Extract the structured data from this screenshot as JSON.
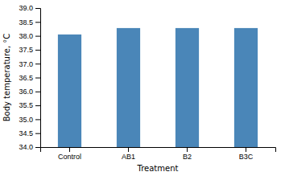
{
  "chart_data": {
    "type": "bar",
    "categories": [
      "Control",
      "AB1",
      "B2",
      "B3C"
    ],
    "values": [
      38.05,
      38.28,
      38.28,
      38.28
    ],
    "color": "#4a86b8",
    "xlabel": "Treatment",
    "ylabel": "Body temperature, °C",
    "ylim": [
      34.0,
      39.0
    ],
    "yticks": [
      {
        "value": 34,
        "label": "34.0"
      },
      34.5,
      {
        "value": 35,
        "label": "35.0"
      },
      35.5,
      {
        "value": 36,
        "label": "36.0"
      },
      36.5,
      {
        "value": 37,
        "label": "37.0"
      },
      37.5,
      {
        "value": 38,
        "label": "38.0"
      },
      38.5,
      {
        "value": 39,
        "label": "39.0"
      }
    ],
    "grid": false
  }
}
